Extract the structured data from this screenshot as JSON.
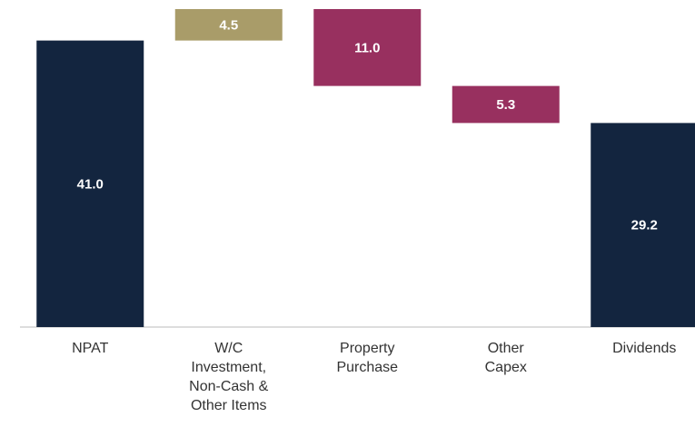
{
  "chart_data": {
    "type": "waterfall",
    "categories": [
      "NPAT",
      "W/C\nInvestment,\nNon-Cash &\nOther Items",
      "Property\nPurchase",
      "Other\nCapex",
      "Dividends"
    ],
    "values": [
      41.0,
      4.5,
      11.0,
      5.3,
      29.2
    ],
    "value_labels": [
      "41.0",
      "4.5",
      "11.0",
      "5.3",
      "29.2"
    ],
    "measures": [
      "total",
      "increase",
      "decrease",
      "decrease",
      "total"
    ],
    "colors": [
      "#13253f",
      "#a99c69",
      "#98305f",
      "#98305f",
      "#13253f"
    ]
  }
}
